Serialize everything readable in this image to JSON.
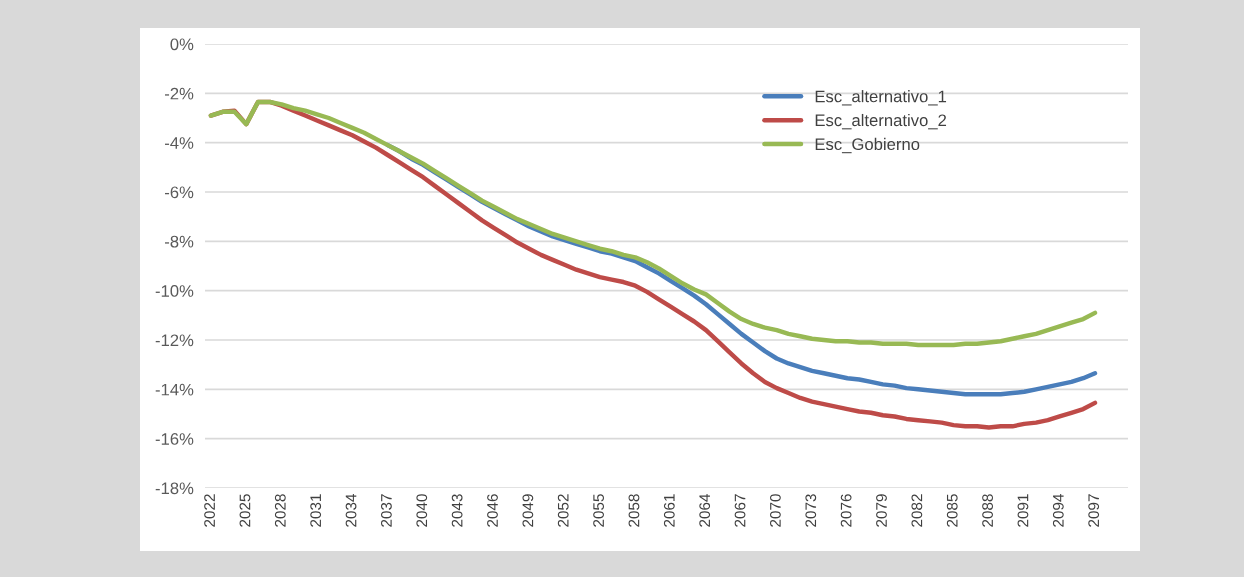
{
  "chart_data": {
    "type": "line",
    "categories": [
      "2022",
      null,
      null,
      "2025",
      null,
      null,
      "2028",
      null,
      null,
      "2031",
      null,
      null,
      "2034",
      null,
      null,
      "2037",
      null,
      null,
      "2040",
      null,
      null,
      "2043",
      null,
      null,
      "2046",
      null,
      null,
      "2049",
      null,
      null,
      "2052",
      null,
      null,
      "2055",
      null,
      null,
      "2058",
      null,
      null,
      "2061",
      null,
      null,
      "2064",
      null,
      null,
      "2067",
      null,
      null,
      "2070",
      null,
      null,
      "2073",
      null,
      null,
      "2076",
      null,
      null,
      "2079",
      null,
      null,
      "2082",
      null,
      null,
      "2085",
      null,
      null,
      "2088",
      null,
      null,
      "2091",
      null,
      null,
      "2094",
      null,
      null,
      "2097"
    ],
    "series": [
      {
        "name": "Esc_alternativo_1",
        "color": "#4a7ebb",
        "values": [
          null,
          null,
          null,
          null,
          null,
          null,
          null,
          null,
          null,
          null,
          null,
          null,
          null,
          null,
          null,
          -4.1,
          -4.35,
          -4.65,
          -4.9,
          -5.2,
          -5.5,
          -5.8,
          -6.1,
          -6.4,
          -6.65,
          -6.9,
          -7.15,
          -7.4,
          -7.6,
          -7.8,
          -7.95,
          -8.1,
          -8.25,
          -8.4,
          -8.5,
          -8.65,
          -8.8,
          -9.05,
          -9.3,
          -9.6,
          -9.9,
          -10.2,
          -10.55,
          -10.95,
          -11.35,
          -11.75,
          -12.1,
          -12.45,
          -12.75,
          -12.95,
          -13.1,
          -13.25,
          -13.35,
          -13.45,
          -13.55,
          -13.6,
          -13.7,
          -13.8,
          -13.85,
          -13.95,
          -14.0,
          -14.05,
          -14.1,
          -14.15,
          -14.2,
          -14.2,
          -14.2,
          -14.2,
          -14.15,
          -14.1,
          -14.0,
          -13.9,
          -13.8,
          -13.7,
          -13.55,
          -13.35
        ]
      },
      {
        "name": "Esc_alternativo_2",
        "color": "#be4b48",
        "values": [
          -2.9,
          -2.75,
          -2.7,
          -3.25,
          -2.35,
          -2.35,
          -2.5,
          -2.7,
          -2.9,
          -3.1,
          -3.3,
          -3.5,
          -3.7,
          -3.95,
          -4.2,
          -4.5,
          -4.8,
          -5.1,
          -5.4,
          -5.75,
          -6.1,
          -6.45,
          -6.8,
          -7.15,
          -7.45,
          -7.75,
          -8.05,
          -8.3,
          -8.55,
          -8.75,
          -8.95,
          -9.15,
          -9.3,
          -9.45,
          -9.55,
          -9.65,
          -9.8,
          -10.05,
          -10.35,
          -10.65,
          -10.95,
          -11.25,
          -11.6,
          -12.05,
          -12.5,
          -12.95,
          -13.35,
          -13.7,
          -13.95,
          -14.15,
          -14.35,
          -14.5,
          -14.6,
          -14.7,
          -14.8,
          -14.9,
          -14.95,
          -15.05,
          -15.1,
          -15.2,
          -15.25,
          -15.3,
          -15.35,
          -15.45,
          -15.5,
          -15.5,
          -15.55,
          -15.5,
          -15.5,
          -15.4,
          -15.35,
          -15.25,
          -15.1,
          -14.95,
          -14.8,
          -14.55
        ]
      },
      {
        "name": "Esc_Gobierno",
        "color": "#98b954",
        "values": [
          -2.9,
          -2.75,
          -2.75,
          -3.25,
          -2.35,
          -2.35,
          -2.45,
          -2.6,
          -2.7,
          -2.85,
          -3.0,
          -3.2,
          -3.4,
          -3.6,
          -3.85,
          -4.1,
          -4.35,
          -4.6,
          -4.85,
          -5.15,
          -5.45,
          -5.75,
          -6.05,
          -6.35,
          -6.6,
          -6.85,
          -7.1,
          -7.3,
          -7.5,
          -7.7,
          -7.85,
          -8.0,
          -8.15,
          -8.3,
          -8.4,
          -8.55,
          -8.65,
          -8.85,
          -9.1,
          -9.4,
          -9.7,
          -9.95,
          -10.15,
          -10.5,
          -10.85,
          -11.15,
          -11.35,
          -11.5,
          -11.6,
          -11.75,
          -11.85,
          -11.95,
          -12.0,
          -12.05,
          -12.05,
          -12.1,
          -12.1,
          -12.15,
          -12.15,
          -12.15,
          -12.2,
          -12.2,
          -12.2,
          -12.2,
          -12.15,
          -12.15,
          -12.1,
          -12.05,
          -11.95,
          -11.85,
          -11.75,
          -11.6,
          -11.45,
          -11.3,
          -11.15,
          -10.9
        ]
      }
    ],
    "ylim": [
      -18,
      0
    ],
    "yticks": [
      {
        "value": -18,
        "label": "-18%"
      },
      {
        "value": -16,
        "label": "-16%"
      },
      {
        "value": -14,
        "label": "-14%"
      },
      {
        "value": -12,
        "label": "-12%"
      },
      {
        "value": -10,
        "label": "-10%"
      },
      {
        "value": -8,
        "label": "-8%"
      },
      {
        "value": -6,
        "label": "-6%"
      },
      {
        "value": -4,
        "label": "-4%"
      },
      {
        "value": -2,
        "label": "-2%"
      },
      {
        "value": 0,
        "label": "0%"
      }
    ],
    "grid": "y",
    "legend": "top right",
    "marker": "none",
    "line_style": "solid"
  }
}
